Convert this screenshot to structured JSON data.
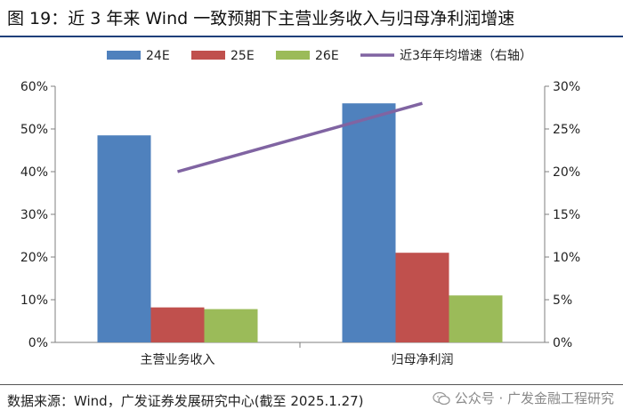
{
  "title": "图 19：近 3 年来 Wind 一致预期下主营业务收入与归母净利润增速",
  "source": "数据来源：Wind，广发证券发展研究中心(截至 2025.1.27)",
  "watermark": {
    "text": "公众号 · 广发金融工程研究",
    "icon": "wechat-icon"
  },
  "chart_data": {
    "type": "bar",
    "categories": [
      "主营业务收入",
      "归母净利润"
    ],
    "series": [
      {
        "name": "24E",
        "type": "bar",
        "axis": "left",
        "color": "#4f81bd",
        "values": [
          48.5,
          56
        ]
      },
      {
        "name": "25E",
        "type": "bar",
        "axis": "left",
        "color": "#c0504d",
        "values": [
          8.2,
          21
        ]
      },
      {
        "name": "26E",
        "type": "bar",
        "axis": "left",
        "color": "#9bbb59",
        "values": [
          7.8,
          11
        ]
      },
      {
        "name": "近3年年均增速（右轴）",
        "type": "line",
        "axis": "right",
        "color": "#8064a2",
        "values": [
          20,
          28
        ]
      }
    ],
    "y_left": {
      "min": 0,
      "max": 60,
      "step": 10,
      "ticks": [
        "0%",
        "10%",
        "20%",
        "30%",
        "40%",
        "50%",
        "60%"
      ]
    },
    "y_right": {
      "min": 0,
      "max": 30,
      "step": 5,
      "ticks": [
        "0%",
        "5%",
        "10%",
        "15%",
        "20%",
        "25%",
        "30%"
      ]
    },
    "legend_position": "top",
    "grid": false
  }
}
